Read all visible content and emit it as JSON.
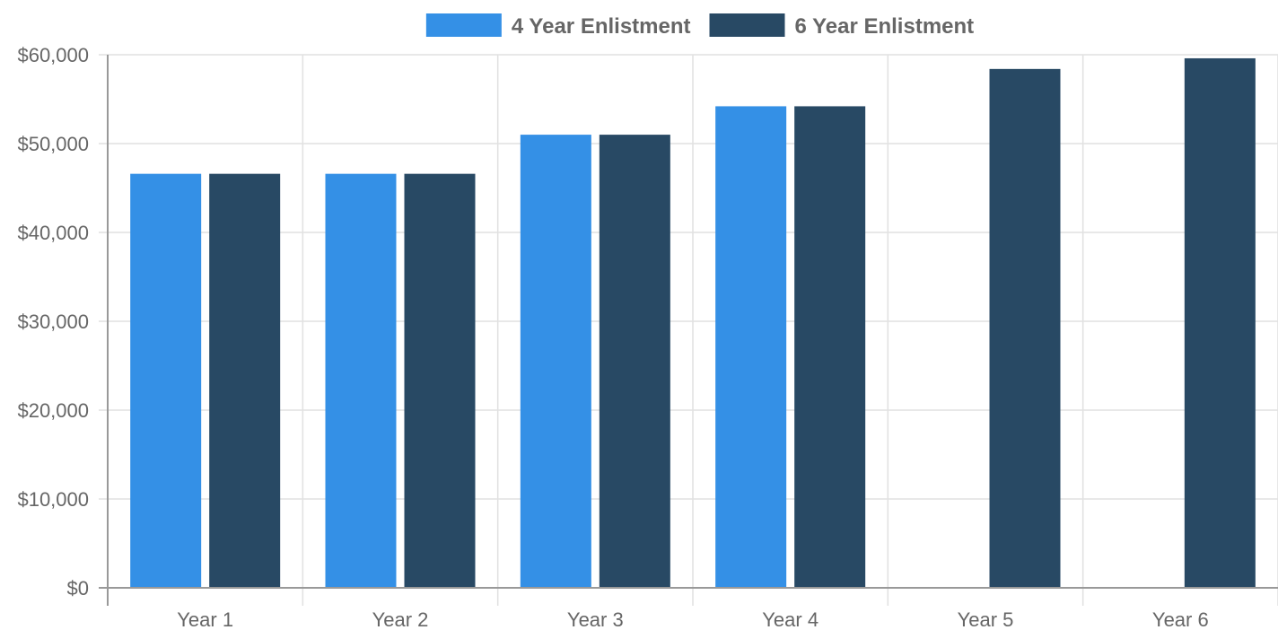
{
  "chart_data": {
    "type": "bar",
    "categories": [
      "Year 1",
      "Year 2",
      "Year 3",
      "Year 4",
      "Year 5",
      "Year 6"
    ],
    "series": [
      {
        "name": "4 Year Enlistment",
        "color": "#3490e6",
        "values": [
          46600,
          46600,
          51000,
          54200,
          null,
          null
        ]
      },
      {
        "name": "6 Year Enlistment",
        "color": "#284964",
        "values": [
          46600,
          46600,
          51000,
          54200,
          58400,
          59600
        ]
      }
    ],
    "y_ticks": [
      {
        "value": 0,
        "label": "$0"
      },
      {
        "value": 10000,
        "label": "$10,000"
      },
      {
        "value": 20000,
        "label": "$20,000"
      },
      {
        "value": 30000,
        "label": "$30,000"
      },
      {
        "value": 40000,
        "label": "$40,000"
      },
      {
        "value": 50000,
        "label": "$50,000"
      },
      {
        "value": 60000,
        "label": "$60,000"
      }
    ],
    "ylim": [
      0,
      60000
    ],
    "grid": true,
    "legend_position": "top-center"
  }
}
